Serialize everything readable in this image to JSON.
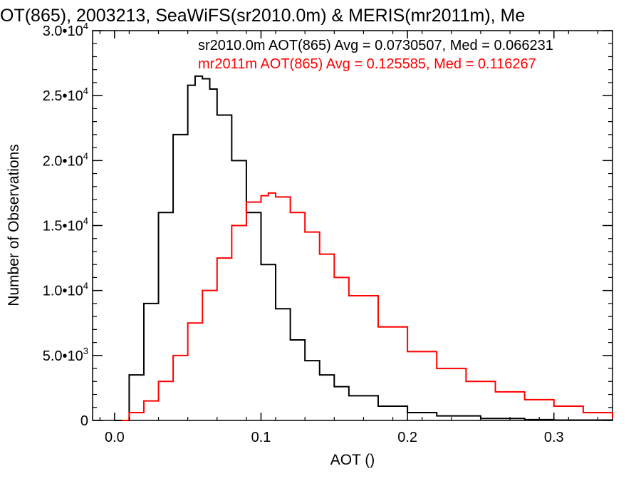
{
  "chart_data": {
    "type": "line",
    "title": "OT(865), 2003213, SeaWiFS(sr2010.0m) & MERIS(mr2011m), Me",
    "xlabel": "AOT ()",
    "ylabel": "Number of Observations",
    "xlim": [
      -0.015,
      0.34
    ],
    "ylim": [
      0,
      30000
    ],
    "grid": false,
    "x_ticks": [
      {
        "value": 0.0,
        "label": "0.0"
      },
      {
        "value": 0.1,
        "label": "0.1"
      },
      {
        "value": 0.2,
        "label": "0.2"
      },
      {
        "value": 0.3,
        "label": "0.3"
      }
    ],
    "y_ticks": [
      {
        "value": 0,
        "mant": "0",
        "exp": ""
      },
      {
        "value": 5000,
        "mant": "5.0•10",
        "exp": "3"
      },
      {
        "value": 10000,
        "mant": "1.0•10",
        "exp": "4"
      },
      {
        "value": 15000,
        "mant": "1.5•10",
        "exp": "4"
      },
      {
        "value": 20000,
        "mant": "2.0•10",
        "exp": "4"
      },
      {
        "value": 25000,
        "mant": "2.5•10",
        "exp": "4"
      },
      {
        "value": 30000,
        "mant": "3.0•10",
        "exp": "4"
      }
    ],
    "legend": [
      {
        "text": "sr2010.0m AOT(865) Avg = 0.0730507, Med = 0.066231",
        "color": "#000000"
      },
      {
        "text": "mr2011m AOT(865) Avg = 0.125585, Med = 0.116267",
        "color": "#ff0000"
      }
    ],
    "series": [
      {
        "color": "#000000",
        "x": [
          0.0,
          0.01,
          0.02,
          0.03,
          0.04,
          0.05,
          0.055,
          0.06,
          0.065,
          0.07,
          0.08,
          0.09,
          0.1,
          0.11,
          0.12,
          0.13,
          0.14,
          0.15,
          0.16,
          0.18,
          0.2,
          0.22,
          0.25,
          0.28,
          0.3,
          0.34
        ],
        "y": [
          0,
          3500,
          9000,
          16000,
          22000,
          25800,
          26500,
          26300,
          25500,
          23500,
          20000,
          16000,
          12000,
          8600,
          6200,
          4600,
          3500,
          2600,
          1900,
          1100,
          600,
          350,
          150,
          60,
          30,
          0
        ]
      },
      {
        "color": "#ff0000",
        "x": [
          0.005,
          0.01,
          0.02,
          0.03,
          0.04,
          0.05,
          0.06,
          0.07,
          0.08,
          0.09,
          0.1,
          0.105,
          0.11,
          0.12,
          0.13,
          0.14,
          0.15,
          0.16,
          0.18,
          0.2,
          0.22,
          0.24,
          0.26,
          0.28,
          0.3,
          0.32,
          0.34
        ],
        "y": [
          0,
          600,
          1500,
          3000,
          5000,
          7500,
          10000,
          12500,
          15000,
          16800,
          17300,
          17500,
          17200,
          16000,
          14500,
          12800,
          11000,
          9600,
          7200,
          5300,
          4000,
          3000,
          2200,
          1600,
          1100,
          600,
          200
        ]
      }
    ]
  }
}
